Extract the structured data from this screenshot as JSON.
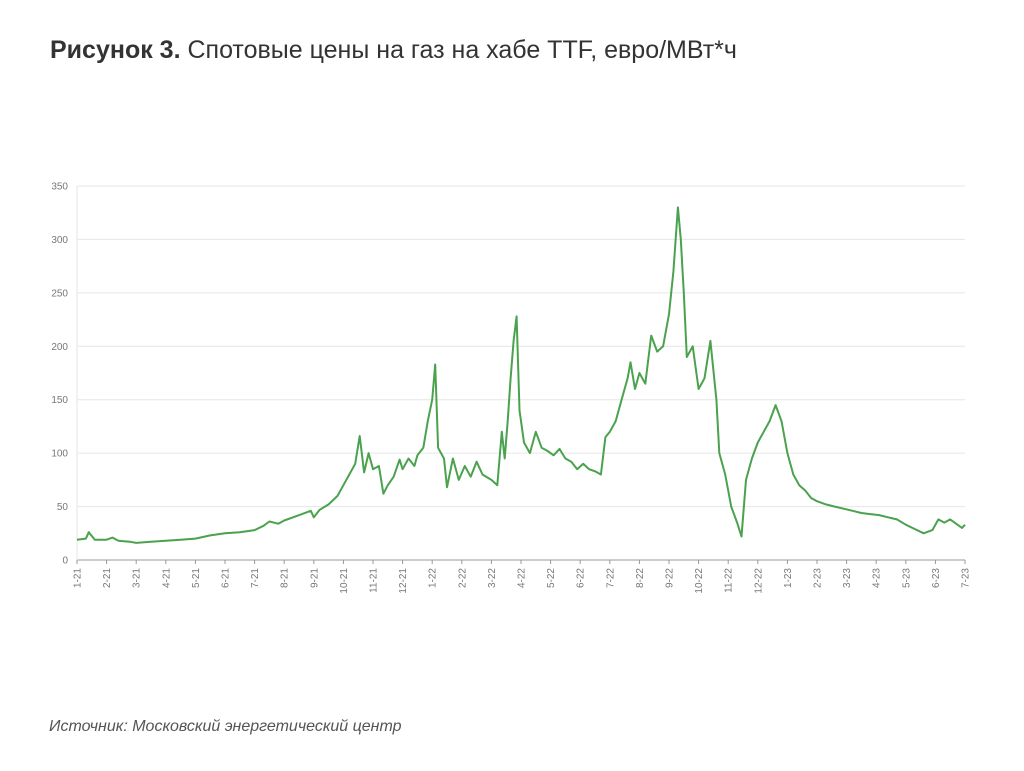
{
  "title": {
    "prefix": "Рисунок 3.",
    "text": " Спотовые цены на газ на хабе TTF, евро/МВт*ч"
  },
  "source": {
    "label": "Источник:",
    "text": " Московский энергетический центр"
  },
  "colors": {
    "line": "#4aa24e",
    "grid": "#e6e6e6",
    "axis": "#999999"
  },
  "chart_data": {
    "type": "line",
    "title": "Спотовые цены на газ на хабе TTF, евро/МВт*ч",
    "xlabel": "",
    "ylabel": "",
    "ylim": [
      0,
      350
    ],
    "grid": true,
    "y_ticks": [
      0,
      50,
      100,
      150,
      200,
      250,
      300,
      350
    ],
    "x_tick_labels": [
      "1-21",
      "2-21",
      "3-21",
      "4-21",
      "5-21",
      "6-21",
      "7-21",
      "8-21",
      "9-21",
      "10-21",
      "11-21",
      "12-21",
      "1-22",
      "2-22",
      "3-22",
      "4-22",
      "5-22",
      "6-22",
      "7-22",
      "8-22",
      "9-22",
      "10-22",
      "11-22",
      "12-22",
      "1-23",
      "2-23",
      "3-23",
      "4-23",
      "5-23",
      "6-23",
      "7-23"
    ],
    "series": [
      {
        "values": [
          [
            0,
            19
          ],
          [
            0.3,
            20
          ],
          [
            0.4,
            26
          ],
          [
            0.6,
            19
          ],
          [
            1.0,
            19
          ],
          [
            1.2,
            21
          ],
          [
            1.4,
            18
          ],
          [
            1.8,
            17
          ],
          [
            2.0,
            16
          ],
          [
            2.5,
            17
          ],
          [
            3.0,
            18
          ],
          [
            3.5,
            19
          ],
          [
            4.0,
            20
          ],
          [
            4.5,
            23
          ],
          [
            5.0,
            25
          ],
          [
            5.5,
            26
          ],
          [
            6.0,
            28
          ],
          [
            6.3,
            32
          ],
          [
            6.5,
            36
          ],
          [
            6.8,
            34
          ],
          [
            7.0,
            37
          ],
          [
            7.3,
            40
          ],
          [
            7.6,
            43
          ],
          [
            7.9,
            46
          ],
          [
            8.0,
            40
          ],
          [
            8.2,
            47
          ],
          [
            8.5,
            52
          ],
          [
            8.8,
            60
          ],
          [
            9.0,
            70
          ],
          [
            9.2,
            80
          ],
          [
            9.4,
            90
          ],
          [
            9.55,
            116
          ],
          [
            9.7,
            82
          ],
          [
            9.85,
            100
          ],
          [
            10.0,
            85
          ],
          [
            10.2,
            88
          ],
          [
            10.35,
            62
          ],
          [
            10.5,
            70
          ],
          [
            10.7,
            78
          ],
          [
            10.9,
            94
          ],
          [
            11.0,
            85
          ],
          [
            11.2,
            95
          ],
          [
            11.4,
            88
          ],
          [
            11.5,
            98
          ],
          [
            11.7,
            105
          ],
          [
            11.85,
            130
          ],
          [
            12.0,
            150
          ],
          [
            12.1,
            183
          ],
          [
            12.2,
            105
          ],
          [
            12.4,
            95
          ],
          [
            12.5,
            68
          ],
          [
            12.7,
            95
          ],
          [
            12.9,
            75
          ],
          [
            13.1,
            88
          ],
          [
            13.3,
            78
          ],
          [
            13.5,
            92
          ],
          [
            13.7,
            80
          ],
          [
            14.0,
            75
          ],
          [
            14.2,
            70
          ],
          [
            14.35,
            120
          ],
          [
            14.45,
            95
          ],
          [
            14.55,
            130
          ],
          [
            14.65,
            170
          ],
          [
            14.75,
            205
          ],
          [
            14.85,
            228
          ],
          [
            14.95,
            140
          ],
          [
            15.1,
            110
          ],
          [
            15.3,
            100
          ],
          [
            15.5,
            120
          ],
          [
            15.7,
            105
          ],
          [
            15.9,
            102
          ],
          [
            16.1,
            98
          ],
          [
            16.3,
            104
          ],
          [
            16.5,
            95
          ],
          [
            16.7,
            92
          ],
          [
            16.9,
            85
          ],
          [
            17.1,
            90
          ],
          [
            17.3,
            85
          ],
          [
            17.5,
            83
          ],
          [
            17.7,
            80
          ],
          [
            17.85,
            115
          ],
          [
            18.0,
            120
          ],
          [
            18.2,
            130
          ],
          [
            18.4,
            150
          ],
          [
            18.6,
            170
          ],
          [
            18.7,
            185
          ],
          [
            18.85,
            160
          ],
          [
            19.0,
            175
          ],
          [
            19.2,
            165
          ],
          [
            19.4,
            210
          ],
          [
            19.6,
            195
          ],
          [
            19.8,
            200
          ],
          [
            20.0,
            230
          ],
          [
            20.15,
            270
          ],
          [
            20.3,
            330
          ],
          [
            20.4,
            300
          ],
          [
            20.5,
            250
          ],
          [
            20.6,
            190
          ],
          [
            20.8,
            200
          ],
          [
            21.0,
            160
          ],
          [
            21.2,
            170
          ],
          [
            21.4,
            205
          ],
          [
            21.6,
            150
          ],
          [
            21.7,
            100
          ],
          [
            21.9,
            80
          ],
          [
            22.1,
            50
          ],
          [
            22.3,
            35
          ],
          [
            22.45,
            22
          ],
          [
            22.6,
            75
          ],
          [
            22.8,
            95
          ],
          [
            23.0,
            110
          ],
          [
            23.2,
            120
          ],
          [
            23.4,
            130
          ],
          [
            23.6,
            145
          ],
          [
            23.8,
            130
          ],
          [
            24.0,
            100
          ],
          [
            24.2,
            80
          ],
          [
            24.4,
            70
          ],
          [
            24.6,
            65
          ],
          [
            24.8,
            58
          ],
          [
            25.0,
            55
          ],
          [
            25.3,
            52
          ],
          [
            25.6,
            50
          ],
          [
            25.9,
            48
          ],
          [
            26.2,
            46
          ],
          [
            26.5,
            44
          ],
          [
            26.8,
            43
          ],
          [
            27.1,
            42
          ],
          [
            27.4,
            40
          ],
          [
            27.7,
            38
          ],
          [
            28.0,
            33
          ],
          [
            28.3,
            29
          ],
          [
            28.6,
            25
          ],
          [
            28.9,
            28
          ],
          [
            29.1,
            38
          ],
          [
            29.3,
            35
          ],
          [
            29.5,
            38
          ],
          [
            29.7,
            34
          ],
          [
            29.9,
            30
          ],
          [
            30.0,
            33
          ]
        ]
      }
    ]
  }
}
